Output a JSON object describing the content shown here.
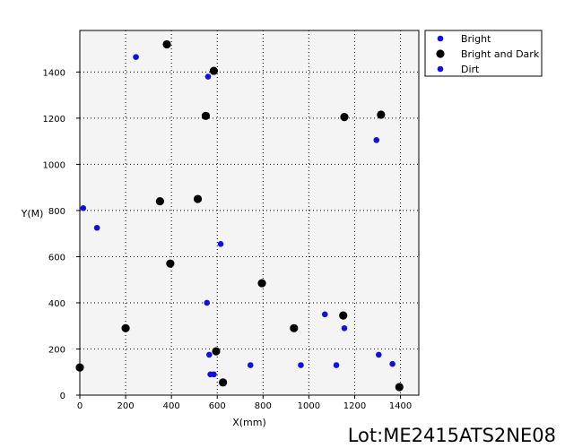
{
  "chart_data": {
    "type": "scatter",
    "xlabel": "X(mm)",
    "ylabel": "Y(M)",
    "xlim": [
      0,
      1480
    ],
    "ylim": [
      0,
      1580
    ],
    "xticks": [
      0,
      200,
      400,
      600,
      800,
      1000,
      1200,
      1400
    ],
    "yticks": [
      0,
      200,
      400,
      600,
      800,
      1000,
      1200,
      1400
    ],
    "grid": true,
    "legend_position": "outside-top-right",
    "series": [
      {
        "name": "Bright",
        "color": "#1010e0",
        "marker_size": "small",
        "points": [
          [
            245,
            1465
          ],
          [
            560,
            1380
          ],
          [
            1295,
            1105
          ],
          [
            15,
            810
          ],
          [
            75,
            725
          ],
          [
            615,
            655
          ],
          [
            555,
            400
          ],
          [
            1070,
            350
          ],
          [
            1155,
            290
          ],
          [
            565,
            175
          ],
          [
            745,
            130
          ],
          [
            965,
            130
          ],
          [
            1120,
            130
          ],
          [
            1305,
            175
          ],
          [
            1365,
            135
          ],
          [
            570,
            90
          ],
          [
            585,
            90
          ]
        ]
      },
      {
        "name": "Bright and Dark",
        "color": "#000000",
        "marker_size": "large",
        "points": [
          [
            380,
            1520
          ],
          [
            585,
            1405
          ],
          [
            550,
            1210
          ],
          [
            1155,
            1205
          ],
          [
            1315,
            1215
          ],
          [
            350,
            840
          ],
          [
            515,
            850
          ],
          [
            395,
            570
          ],
          [
            795,
            485
          ],
          [
            200,
            290
          ],
          [
            935,
            290
          ],
          [
            1150,
            345
          ],
          [
            595,
            190
          ],
          [
            625,
            55
          ],
          [
            0,
            120
          ],
          [
            1395,
            35
          ]
        ]
      },
      {
        "name": "Dirt",
        "color": "#1010e0",
        "marker_size": "small",
        "points": []
      }
    ]
  },
  "caption": "Lot:ME2415ATS2NE08"
}
